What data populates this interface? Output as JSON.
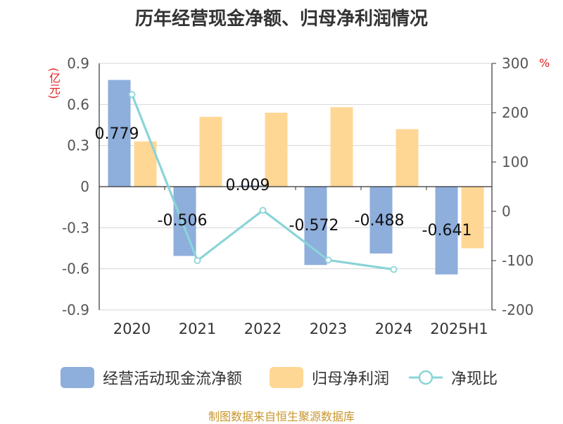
{
  "colors": {
    "cashflow": "#8eaedc",
    "profit": "#ffd795",
    "ratio": "#8ad4d8",
    "unit_red": "#e02020",
    "source": "#c8962c"
  },
  "chart_data": {
    "type": "bar",
    "title": "历年经营现金净额、归母净利润情况",
    "categories": [
      "2020",
      "2021",
      "2022",
      "2023",
      "2024",
      "2025H1"
    ],
    "series": [
      {
        "name": "经营活动现金流净额",
        "type": "bar",
        "axis": "left",
        "values": [
          0.779,
          -0.506,
          0.009,
          -0.572,
          -0.488,
          -0.641
        ],
        "labels": [
          "0.779",
          "-0.506",
          "0.009",
          "-0.572",
          "-0.488",
          "-0.641"
        ]
      },
      {
        "name": "归母净利润",
        "type": "bar",
        "axis": "left",
        "values": [
          0.33,
          0.51,
          0.54,
          0.58,
          0.42,
          -0.45
        ]
      },
      {
        "name": "净现比",
        "type": "line",
        "axis": "right",
        "values": [
          237,
          -100,
          2,
          -99,
          -118,
          null
        ]
      }
    ],
    "left_axis": {
      "unit": "(亿元)",
      "ylim": [
        -0.9,
        0.9
      ],
      "ticks": [
        0.9,
        0.6,
        0.3,
        0,
        -0.3,
        -0.6,
        -0.9
      ],
      "tick_labels": [
        "0.9",
        "0.6",
        "0.3",
        "0",
        "-0.3",
        "-0.6",
        "-0.9"
      ]
    },
    "right_axis": {
      "unit": "%",
      "ylim": [
        -200,
        300
      ],
      "ticks": [
        300,
        200,
        100,
        0,
        -100,
        -200
      ],
      "tick_labels": [
        "300",
        "200",
        "100",
        "0",
        "-100",
        "-200"
      ]
    },
    "grid": true,
    "legend_position": "bottom"
  },
  "source": "制图数据来自恒生聚源数据库"
}
